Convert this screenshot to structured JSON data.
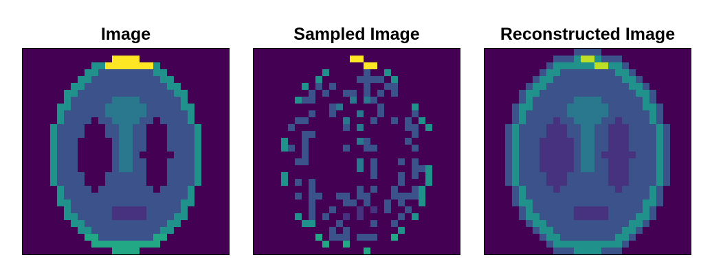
{
  "panels": [
    {
      "id": "image",
      "title": "Image"
    },
    {
      "id": "sampled",
      "title": "Sampled Image"
    },
    {
      "id": "reconstructed",
      "title": "Reconstructed Image"
    }
  ],
  "colors": {
    "background": "#440154",
    "interior": "#3b528b",
    "mid": "#31688e",
    "feature": "#2a788e",
    "edge": "#21918c",
    "edge_bright": "#22a884",
    "highlight": "#fde725",
    "highlight_soft": "#bddf26",
    "dark": "#46327e"
  },
  "colormap": "viridis"
}
